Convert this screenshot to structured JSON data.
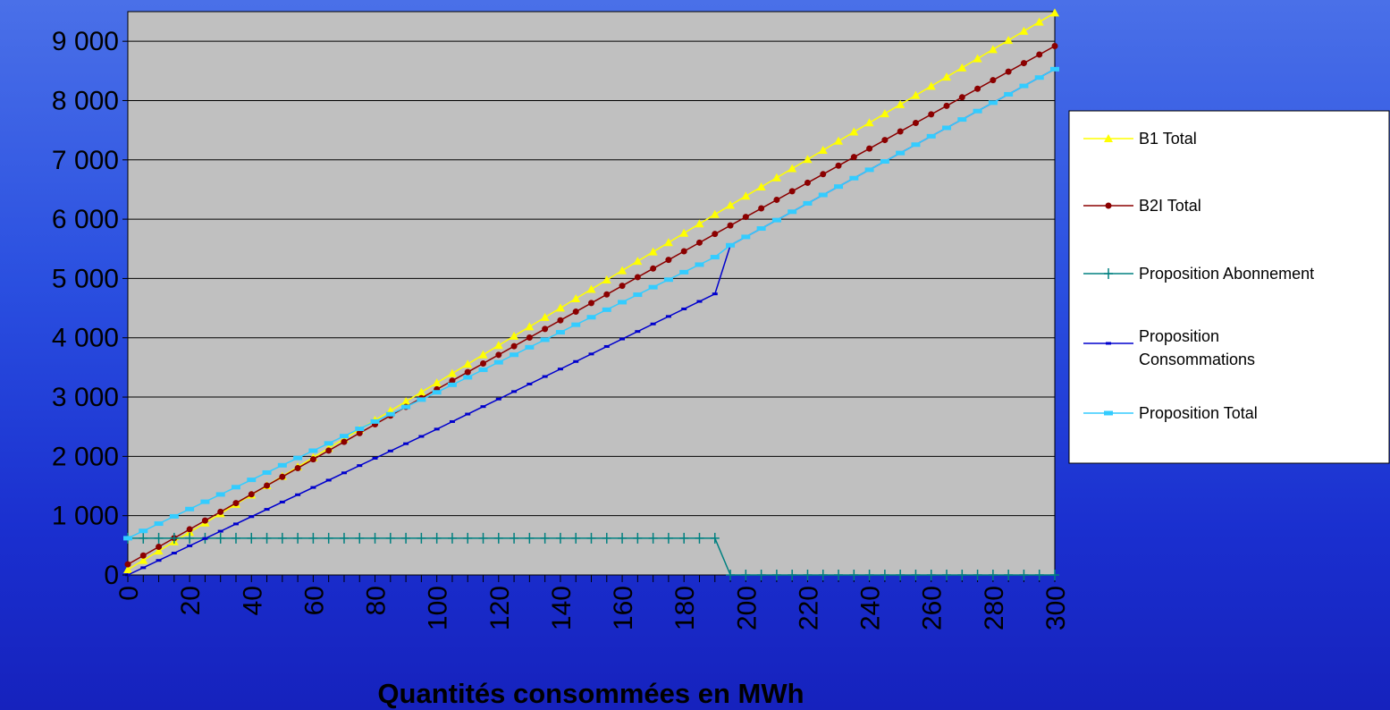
{
  "chart_data": {
    "type": "line",
    "title": "",
    "xlabel": "Quantités consommées en MWh",
    "ylabel": "",
    "xlim": [
      0,
      300
    ],
    "ylim": [
      0,
      9500
    ],
    "y_ticks": [
      0,
      1000,
      2000,
      3000,
      4000,
      5000,
      6000,
      7000,
      8000,
      9000
    ],
    "y_tick_labels": [
      "0",
      "1 000",
      "2 000",
      "3 000",
      "4 000",
      "5 000",
      "6 000",
      "7 000",
      "8 000",
      "9 000"
    ],
    "x_ticks": [
      0,
      20,
      40,
      60,
      80,
      100,
      120,
      140,
      160,
      180,
      200,
      220,
      240,
      260,
      280,
      300
    ],
    "x_tick_labels": [
      "0",
      "20",
      "40",
      "60",
      "80",
      "100",
      "120",
      "140",
      "160",
      "180",
      "200",
      "220",
      "240",
      "260",
      "280",
      "300"
    ],
    "grid": "horizontal",
    "plot_background": "#c0c0c0",
    "legend_position": "right",
    "series": [
      {
        "name": "B1 Total",
        "color": "#ffff00",
        "marker": "triangle",
        "points": [
          [
            0,
            90
          ],
          [
            100,
            3240
          ],
          [
            190,
            6080
          ],
          [
            300,
            9480
          ]
        ]
      },
      {
        "name": "B2I Total",
        "color": "#8b0000",
        "marker": "circle",
        "points": [
          [
            0,
            180
          ],
          [
            100,
            3130
          ],
          [
            190,
            5750
          ],
          [
            300,
            8920
          ]
        ]
      },
      {
        "name": "Proposition Abonnement",
        "color": "#008080",
        "marker": "plus",
        "points": [
          [
            0,
            620
          ],
          [
            190,
            620
          ],
          [
            195,
            0
          ],
          [
            300,
            0
          ]
        ]
      },
      {
        "name": "Proposition Consommations",
        "color": "#0000cd",
        "marker": "dash",
        "points": [
          [
            0,
            0
          ],
          [
            100,
            2460
          ],
          [
            190,
            4740
          ],
          [
            195,
            5560
          ],
          [
            300,
            8530
          ]
        ]
      },
      {
        "name": "Proposition Total",
        "color": "#33ccff",
        "marker": "square",
        "points": [
          [
            0,
            620
          ],
          [
            100,
            3080
          ],
          [
            190,
            5360
          ],
          [
            195,
            5560
          ],
          [
            300,
            8530
          ]
        ]
      }
    ]
  }
}
